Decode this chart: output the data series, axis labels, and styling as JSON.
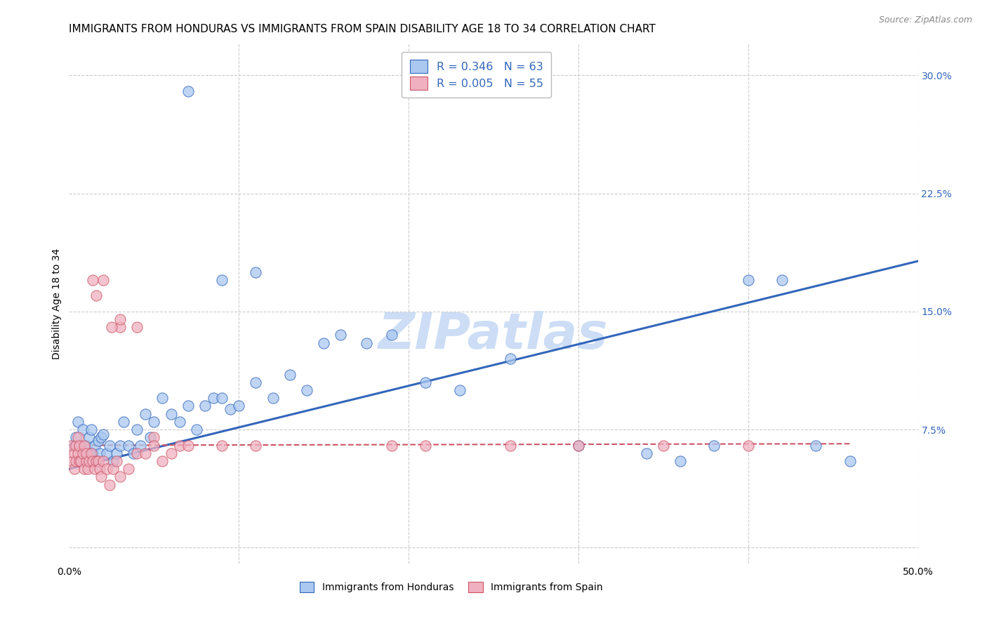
{
  "title": "IMMIGRANTS FROM HONDURAS VS IMMIGRANTS FROM SPAIN DISABILITY AGE 18 TO 34 CORRELATION CHART",
  "source": "Source: ZipAtlas.com",
  "ylabel": "Disability Age 18 to 34",
  "xlim": [
    0.0,
    0.5
  ],
  "ylim": [
    -0.01,
    0.32
  ],
  "yticks": [
    0.0,
    0.075,
    0.15,
    0.225,
    0.3
  ],
  "ytick_labels": [
    "",
    "7.5%",
    "15.0%",
    "22.5%",
    "30.0%"
  ],
  "xtick_positions": [
    0.0,
    0.1,
    0.2,
    0.3,
    0.4,
    0.5
  ],
  "xtick_labels": [
    "0.0%",
    "",
    "",
    "",
    "",
    "50.0%"
  ],
  "watermark": "ZIPatlas",
  "legend_R_blue": "R = 0.346",
  "legend_N_blue": "N = 63",
  "legend_R_pink": "R = 0.005",
  "legend_N_pink": "N = 55",
  "blue_color": "#aac8f0",
  "pink_color": "#f0b0c0",
  "line_blue": "#3366bb",
  "line_pink": "#cc5566",
  "honduras_x": [
    0.003,
    0.004,
    0.005,
    0.006,
    0.007,
    0.008,
    0.009,
    0.01,
    0.011,
    0.012,
    0.013,
    0.014,
    0.015,
    0.016,
    0.017,
    0.018,
    0.019,
    0.02,
    0.022,
    0.024,
    0.026,
    0.028,
    0.03,
    0.032,
    0.035,
    0.038,
    0.04,
    0.042,
    0.045,
    0.048,
    0.05,
    0.055,
    0.06,
    0.065,
    0.07,
    0.075,
    0.08,
    0.085,
    0.09,
    0.095,
    0.1,
    0.11,
    0.12,
    0.13,
    0.14,
    0.15,
    0.16,
    0.175,
    0.19,
    0.21,
    0.23,
    0.26,
    0.3,
    0.34,
    0.36,
    0.38,
    0.4,
    0.42,
    0.44,
    0.46,
    0.07,
    0.09,
    0.11
  ],
  "honduras_y": [
    0.065,
    0.07,
    0.08,
    0.065,
    0.055,
    0.075,
    0.06,
    0.065,
    0.055,
    0.07,
    0.075,
    0.06,
    0.065,
    0.055,
    0.068,
    0.06,
    0.07,
    0.072,
    0.06,
    0.065,
    0.055,
    0.06,
    0.065,
    0.08,
    0.065,
    0.06,
    0.075,
    0.065,
    0.085,
    0.07,
    0.08,
    0.095,
    0.085,
    0.08,
    0.09,
    0.075,
    0.09,
    0.095,
    0.095,
    0.088,
    0.09,
    0.105,
    0.095,
    0.11,
    0.1,
    0.13,
    0.135,
    0.13,
    0.135,
    0.105,
    0.1,
    0.12,
    0.065,
    0.06,
    0.055,
    0.065,
    0.17,
    0.17,
    0.065,
    0.055,
    0.29,
    0.17,
    0.175
  ],
  "spain_x": [
    0.001,
    0.002,
    0.003,
    0.003,
    0.004,
    0.004,
    0.005,
    0.005,
    0.006,
    0.006,
    0.007,
    0.008,
    0.009,
    0.009,
    0.01,
    0.01,
    0.011,
    0.012,
    0.013,
    0.014,
    0.015,
    0.016,
    0.017,
    0.018,
    0.019,
    0.02,
    0.022,
    0.024,
    0.026,
    0.028,
    0.03,
    0.035,
    0.04,
    0.045,
    0.05,
    0.055,
    0.06,
    0.065,
    0.03,
    0.04,
    0.19,
    0.21,
    0.26,
    0.3,
    0.35,
    0.4,
    0.05,
    0.07,
    0.09,
    0.11,
    0.014,
    0.016,
    0.02,
    0.025,
    0.03
  ],
  "spain_y": [
    0.065,
    0.055,
    0.05,
    0.06,
    0.055,
    0.065,
    0.06,
    0.07,
    0.055,
    0.065,
    0.055,
    0.06,
    0.05,
    0.065,
    0.055,
    0.06,
    0.05,
    0.055,
    0.06,
    0.055,
    0.05,
    0.055,
    0.055,
    0.05,
    0.045,
    0.055,
    0.05,
    0.04,
    0.05,
    0.055,
    0.045,
    0.05,
    0.06,
    0.06,
    0.07,
    0.055,
    0.06,
    0.065,
    0.14,
    0.14,
    0.065,
    0.065,
    0.065,
    0.065,
    0.065,
    0.065,
    0.065,
    0.065,
    0.065,
    0.065,
    0.17,
    0.16,
    0.17,
    0.14,
    0.145
  ],
  "blue_trendline_x": [
    0.0,
    0.5
  ],
  "blue_trendline_y": [
    0.05,
    0.182
  ],
  "pink_trendline_x": [
    0.0,
    0.46
  ],
  "pink_trendline_y": [
    0.065,
    0.066
  ],
  "background_color": "#ffffff",
  "grid_color": "#cccccc",
  "title_fontsize": 11,
  "axis_label_fontsize": 10,
  "tick_fontsize": 10,
  "watermark_fontsize": 52,
  "watermark_color": "#ccddf5",
  "source_fontsize": 9
}
